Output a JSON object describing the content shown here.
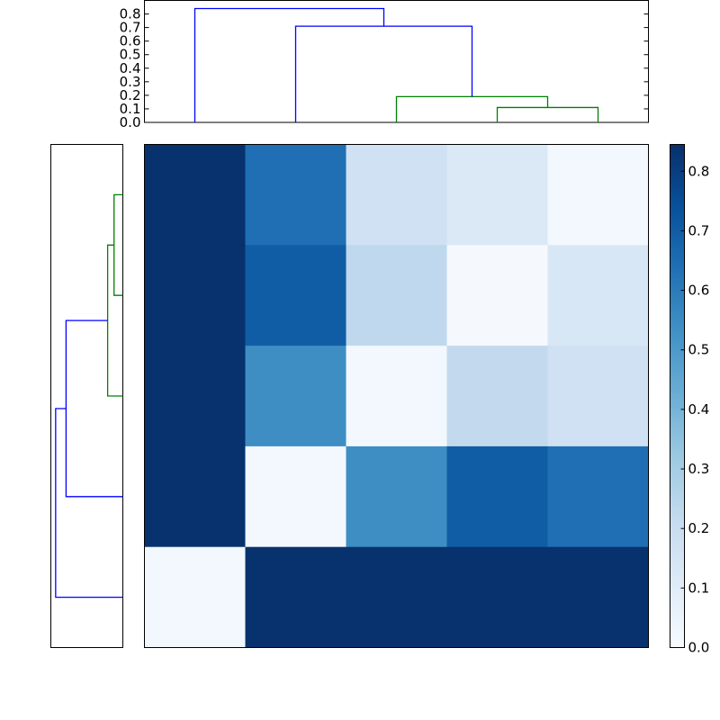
{
  "chart_data": {
    "type": "heatmap",
    "title": "",
    "xlabel": "",
    "ylabel": "",
    "colormap": "Blues",
    "matrix": [
      [
        0.84,
        0.64,
        0.17,
        0.12,
        0.02
      ],
      [
        0.84,
        0.7,
        0.23,
        0.01,
        0.13
      ],
      [
        0.84,
        0.54,
        0.02,
        0.22,
        0.17
      ],
      [
        0.84,
        0.02,
        0.54,
        0.7,
        0.64
      ],
      [
        0.02,
        0.84,
        0.84,
        0.84,
        0.84
      ]
    ],
    "colorbar": {
      "min": 0.0,
      "max": 0.845,
      "ticks": [
        "0.0",
        "0.1",
        "0.2",
        "0.3",
        "0.4",
        "0.5",
        "0.6",
        "0.7",
        "0.8"
      ]
    },
    "top_dendrogram": {
      "yticks": [
        "0.0",
        "0.1",
        "0.2",
        "0.3",
        "0.4",
        "0.5",
        "0.6",
        "0.7",
        "0.8"
      ],
      "ylim": [
        0,
        0.9
      ],
      "links": [
        {
          "left": 3,
          "right": 4,
          "height": 0.11,
          "color": "#008000"
        },
        {
          "left": 2,
          "right": 3.5,
          "height": 0.19,
          "color": "#008000"
        },
        {
          "left": 1,
          "right": 2.75,
          "height": 0.71,
          "color": "#0000ff"
        },
        {
          "left": 0,
          "right": 1.875,
          "height": 0.84,
          "color": "#0000ff"
        }
      ],
      "leaf_heights": [
        0,
        0,
        0,
        0,
        0
      ]
    },
    "left_dendrogram": {
      "xlim": [
        0,
        0.9
      ],
      "links": [
        {
          "a": 0.5,
          "b": 1.5,
          "height": 0.11,
          "color": "#008000"
        },
        {
          "a": 1.0,
          "b": 2.5,
          "height": 0.19,
          "color": "#008000"
        },
        {
          "a": 1.75,
          "b": 3.5,
          "height": 0.71,
          "color": "#0000ff"
        },
        {
          "a": 2.625,
          "b": 4.5,
          "height": 0.84,
          "color": "#0000ff"
        }
      ]
    }
  }
}
